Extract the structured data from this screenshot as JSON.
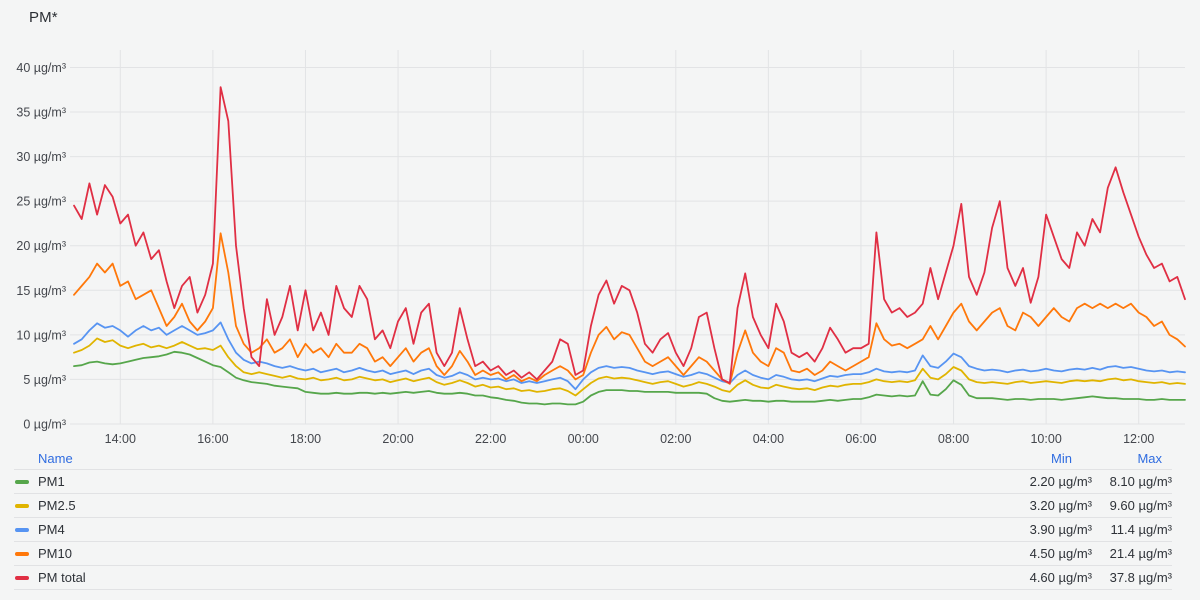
{
  "panel": {
    "title": "PM*"
  },
  "chart_data": {
    "type": "line",
    "title": "PM*",
    "unit": "µg/m³",
    "x_start": "13:00",
    "x_step_minutes": 10,
    "x_span_hours": 24,
    "x_ticks": [
      "14:00",
      "16:00",
      "18:00",
      "20:00",
      "22:00",
      "00:00",
      "02:00",
      "04:00",
      "06:00",
      "08:00",
      "10:00",
      "12:00"
    ],
    "y_ticks": [
      0,
      5,
      10,
      15,
      20,
      25,
      30,
      35,
      40
    ],
    "ylim": [
      0,
      42.3
    ],
    "grid": true,
    "legend_position": "bottom-table",
    "colors": {
      "background": "#f4f5f5",
      "gridline": "#e2e3e5",
      "axis_text": "#44474d",
      "link": "#2f6ce0"
    },
    "series": [
      {
        "name": "PM1",
        "color": "#56a64b",
        "values": [
          6.5,
          6.6,
          6.9,
          7.0,
          6.8,
          6.7,
          6.8,
          7.0,
          7.2,
          7.4,
          7.5,
          7.6,
          7.8,
          8.1,
          8.0,
          7.8,
          7.4,
          7.0,
          6.6,
          6.4,
          5.8,
          5.2,
          4.9,
          4.7,
          4.6,
          4.5,
          4.3,
          4.2,
          4.1,
          4.0,
          3.6,
          3.5,
          3.4,
          3.4,
          3.5,
          3.4,
          3.4,
          3.5,
          3.5,
          3.4,
          3.5,
          3.4,
          3.5,
          3.6,
          3.5,
          3.6,
          3.7,
          3.5,
          3.4,
          3.4,
          3.5,
          3.4,
          3.2,
          3.2,
          3.0,
          2.9,
          2.7,
          2.6,
          2.4,
          2.3,
          2.3,
          2.2,
          2.3,
          2.3,
          2.2,
          2.2,
          2.5,
          3.2,
          3.6,
          3.8,
          3.8,
          3.8,
          3.7,
          3.7,
          3.6,
          3.6,
          3.6,
          3.6,
          3.5,
          3.5,
          3.5,
          3.5,
          3.4,
          2.9,
          2.6,
          2.5,
          2.6,
          2.7,
          2.6,
          2.6,
          2.5,
          2.6,
          2.6,
          2.5,
          2.5,
          2.5,
          2.5,
          2.6,
          2.7,
          2.6,
          2.7,
          2.8,
          2.8,
          3.0,
          3.3,
          3.2,
          3.1,
          3.2,
          3.1,
          3.2,
          4.8,
          3.3,
          3.2,
          3.9,
          4.9,
          4.4,
          3.2,
          2.9,
          2.9,
          2.9,
          2.8,
          2.7,
          2.8,
          2.8,
          2.7,
          2.8,
          2.8,
          2.8,
          2.7,
          2.8,
          2.9,
          3.0,
          3.1,
          3.0,
          2.9,
          2.9,
          2.8,
          2.8,
          2.8,
          2.7,
          2.7,
          2.8,
          2.7,
          2.7,
          2.7
        ]
      },
      {
        "name": "PM2.5",
        "color": "#e0b400",
        "values": [
          8.0,
          8.3,
          8.8,
          9.6,
          9.2,
          9.4,
          8.8,
          8.5,
          8.8,
          9.0,
          8.6,
          8.8,
          8.5,
          8.8,
          9.2,
          8.8,
          8.4,
          8.5,
          8.3,
          8.8,
          7.5,
          6.5,
          5.8,
          5.6,
          5.8,
          5.6,
          5.4,
          5.2,
          5.4,
          5.1,
          5.0,
          5.2,
          4.9,
          5.0,
          5.2,
          4.9,
          5.0,
          5.3,
          5.1,
          4.9,
          5.0,
          4.7,
          4.9,
          5.1,
          4.8,
          5.0,
          5.2,
          4.7,
          4.4,
          4.6,
          4.9,
          4.6,
          4.2,
          4.4,
          4.1,
          4.2,
          3.9,
          4.0,
          3.7,
          3.8,
          3.6,
          3.7,
          3.9,
          4.0,
          3.7,
          3.2,
          3.9,
          4.6,
          5.1,
          5.3,
          5.1,
          5.2,
          5.1,
          4.9,
          4.7,
          4.5,
          4.7,
          4.8,
          4.5,
          4.2,
          4.4,
          4.7,
          4.5,
          4.2,
          3.8,
          3.6,
          4.4,
          4.9,
          4.4,
          4.1,
          4.0,
          4.4,
          4.2,
          4.0,
          3.9,
          4.0,
          3.8,
          4.1,
          4.3,
          4.2,
          4.4,
          4.5,
          4.5,
          4.7,
          5.0,
          4.8,
          4.7,
          4.8,
          4.7,
          4.9,
          6.2,
          5.2,
          5.0,
          5.6,
          6.4,
          6.0,
          5.0,
          4.7,
          4.6,
          4.7,
          4.6,
          4.5,
          4.7,
          4.8,
          4.6,
          4.7,
          4.8,
          4.7,
          4.6,
          4.8,
          4.9,
          4.8,
          4.9,
          4.8,
          5.0,
          5.1,
          4.9,
          5.0,
          4.8,
          4.7,
          4.6,
          4.7,
          4.5,
          4.6,
          4.5
        ]
      },
      {
        "name": "PM4",
        "color": "#5794f2",
        "values": [
          9.0,
          9.5,
          10.5,
          11.3,
          10.8,
          11.0,
          10.5,
          9.8,
          10.5,
          11.0,
          10.5,
          10.8,
          10.0,
          10.5,
          11.0,
          10.5,
          10.0,
          10.2,
          10.5,
          11.4,
          9.5,
          8.0,
          7.2,
          6.8,
          7.0,
          6.8,
          6.5,
          6.3,
          6.5,
          6.2,
          6.0,
          6.2,
          5.8,
          6.0,
          6.2,
          5.8,
          6.0,
          6.3,
          6.0,
          5.8,
          6.0,
          5.6,
          5.8,
          6.0,
          5.6,
          6.0,
          6.2,
          5.5,
          5.2,
          5.4,
          5.8,
          5.5,
          5.0,
          5.2,
          5.0,
          5.1,
          4.8,
          5.0,
          4.6,
          4.8,
          4.6,
          4.8,
          5.0,
          5.2,
          4.8,
          3.9,
          5.0,
          5.8,
          6.3,
          6.5,
          6.3,
          6.4,
          6.3,
          6.0,
          5.8,
          5.6,
          5.8,
          5.9,
          5.6,
          5.3,
          5.5,
          5.8,
          5.6,
          5.2,
          4.8,
          4.6,
          5.5,
          6.0,
          5.5,
          5.2,
          5.0,
          5.5,
          5.3,
          5.0,
          4.9,
          5.0,
          4.8,
          5.1,
          5.4,
          5.3,
          5.5,
          5.6,
          5.6,
          5.8,
          6.2,
          5.9,
          5.8,
          5.9,
          5.8,
          6.0,
          7.7,
          6.5,
          6.3,
          7.0,
          7.9,
          7.5,
          6.5,
          6.2,
          6.0,
          6.1,
          6.0,
          5.8,
          6.0,
          6.1,
          5.9,
          6.0,
          6.2,
          6.0,
          5.9,
          6.1,
          6.2,
          6.1,
          6.3,
          6.1,
          6.4,
          6.5,
          6.3,
          6.4,
          6.2,
          6.0,
          5.9,
          6.0,
          5.8,
          5.9,
          5.8
        ]
      },
      {
        "name": "PM10",
        "color": "#ff780a",
        "values": [
          14.5,
          15.5,
          16.5,
          18.0,
          17.0,
          18.0,
          15.5,
          16.0,
          14.0,
          14.5,
          15.0,
          13.0,
          11.0,
          12.0,
          13.5,
          11.5,
          10.5,
          11.5,
          13.0,
          21.4,
          17.0,
          11.0,
          9.0,
          8.0,
          8.5,
          9.5,
          8.0,
          8.5,
          9.5,
          7.5,
          9.0,
          8.0,
          8.5,
          7.5,
          9.0,
          8.0,
          8.0,
          9.0,
          8.5,
          7.0,
          7.5,
          6.5,
          7.5,
          8.5,
          7.0,
          8.0,
          8.5,
          6.5,
          5.5,
          6.5,
          8.2,
          7.0,
          5.5,
          6.0,
          5.5,
          5.8,
          5.0,
          5.5,
          4.8,
          5.2,
          4.8,
          5.5,
          6.0,
          6.5,
          6.0,
          5.0,
          5.5,
          8.0,
          10.0,
          10.9,
          9.5,
          10.3,
          10.0,
          8.5,
          7.0,
          6.5,
          7.0,
          7.5,
          6.5,
          5.5,
          6.5,
          7.5,
          7.0,
          6.0,
          5.0,
          4.5,
          8.0,
          10.5,
          8.0,
          7.0,
          6.5,
          8.5,
          8.0,
          6.0,
          5.8,
          6.2,
          5.5,
          6.0,
          7.0,
          6.5,
          6.0,
          6.5,
          7.0,
          7.5,
          11.3,
          9.5,
          8.8,
          9.0,
          8.5,
          9.0,
          9.5,
          11.0,
          9.5,
          11.0,
          12.5,
          13.5,
          11.5,
          10.5,
          11.5,
          12.5,
          13.0,
          11.0,
          10.5,
          12.5,
          12.0,
          11.0,
          12.0,
          13.0,
          12.0,
          11.5,
          13.0,
          13.5,
          13.0,
          13.5,
          13.0,
          13.5,
          13.0,
          13.5,
          12.5,
          12.0,
          11.0,
          11.5,
          10.0,
          9.5,
          8.7
        ]
      },
      {
        "name": "PM total",
        "color": "#e02f44",
        "values": [
          24.5,
          23.0,
          27.0,
          23.5,
          26.8,
          25.5,
          22.5,
          23.5,
          20.0,
          21.5,
          18.5,
          19.5,
          16.0,
          13.0,
          15.5,
          16.5,
          12.5,
          14.5,
          18.0,
          37.8,
          34.0,
          20.0,
          13.0,
          7.5,
          6.5,
          14.0,
          10.0,
          12.0,
          15.5,
          10.5,
          15.0,
          10.5,
          12.5,
          10.0,
          15.5,
          13.0,
          12.0,
          15.5,
          14.0,
          9.5,
          10.5,
          8.5,
          11.5,
          13.0,
          9.0,
          12.5,
          13.5,
          8.0,
          6.5,
          8.0,
          13.0,
          9.5,
          6.5,
          7.0,
          6.0,
          6.5,
          5.5,
          6.0,
          5.2,
          5.8,
          5.0,
          6.0,
          7.0,
          9.5,
          9.0,
          5.5,
          6.0,
          11.0,
          14.5,
          16.1,
          13.5,
          15.5,
          15.0,
          12.5,
          9.0,
          8.0,
          9.5,
          10.2,
          8.0,
          6.5,
          8.5,
          12.0,
          12.5,
          8.5,
          5.0,
          4.6,
          13.0,
          16.9,
          12.0,
          10.0,
          8.5,
          13.5,
          11.5,
          8.0,
          7.5,
          8.0,
          7.0,
          8.5,
          10.8,
          9.5,
          8.0,
          8.5,
          8.5,
          9.0,
          21.5,
          14.0,
          12.5,
          13.0,
          12.0,
          12.5,
          13.5,
          17.5,
          14.0,
          17.0,
          20.0,
          24.7,
          16.5,
          14.5,
          17.0,
          22.0,
          25.0,
          17.5,
          15.5,
          17.5,
          13.6,
          16.5,
          23.5,
          21.0,
          18.5,
          17.5,
          21.5,
          20.0,
          23.0,
          21.5,
          26.5,
          28.8,
          26.0,
          23.5,
          21.0,
          19.0,
          17.5,
          18.0,
          16.0,
          16.5,
          14.0
        ]
      }
    ]
  },
  "legend": {
    "headers": {
      "name": "Name",
      "min": "Min",
      "max": "Max"
    },
    "rows": [
      {
        "name": "PM1",
        "color": "#56a64b",
        "min": "2.20 µg/m³",
        "max": "8.10 µg/m³"
      },
      {
        "name": "PM2.5",
        "color": "#e0b400",
        "min": "3.20 µg/m³",
        "max": "9.60 µg/m³"
      },
      {
        "name": "PM4",
        "color": "#5794f2",
        "min": "3.90 µg/m³",
        "max": "11.4 µg/m³"
      },
      {
        "name": "PM10",
        "color": "#ff780a",
        "min": "4.50 µg/m³",
        "max": "21.4 µg/m³"
      },
      {
        "name": "PM total",
        "color": "#e02f44",
        "min": "4.60 µg/m³",
        "max": "37.8 µg/m³"
      }
    ]
  }
}
